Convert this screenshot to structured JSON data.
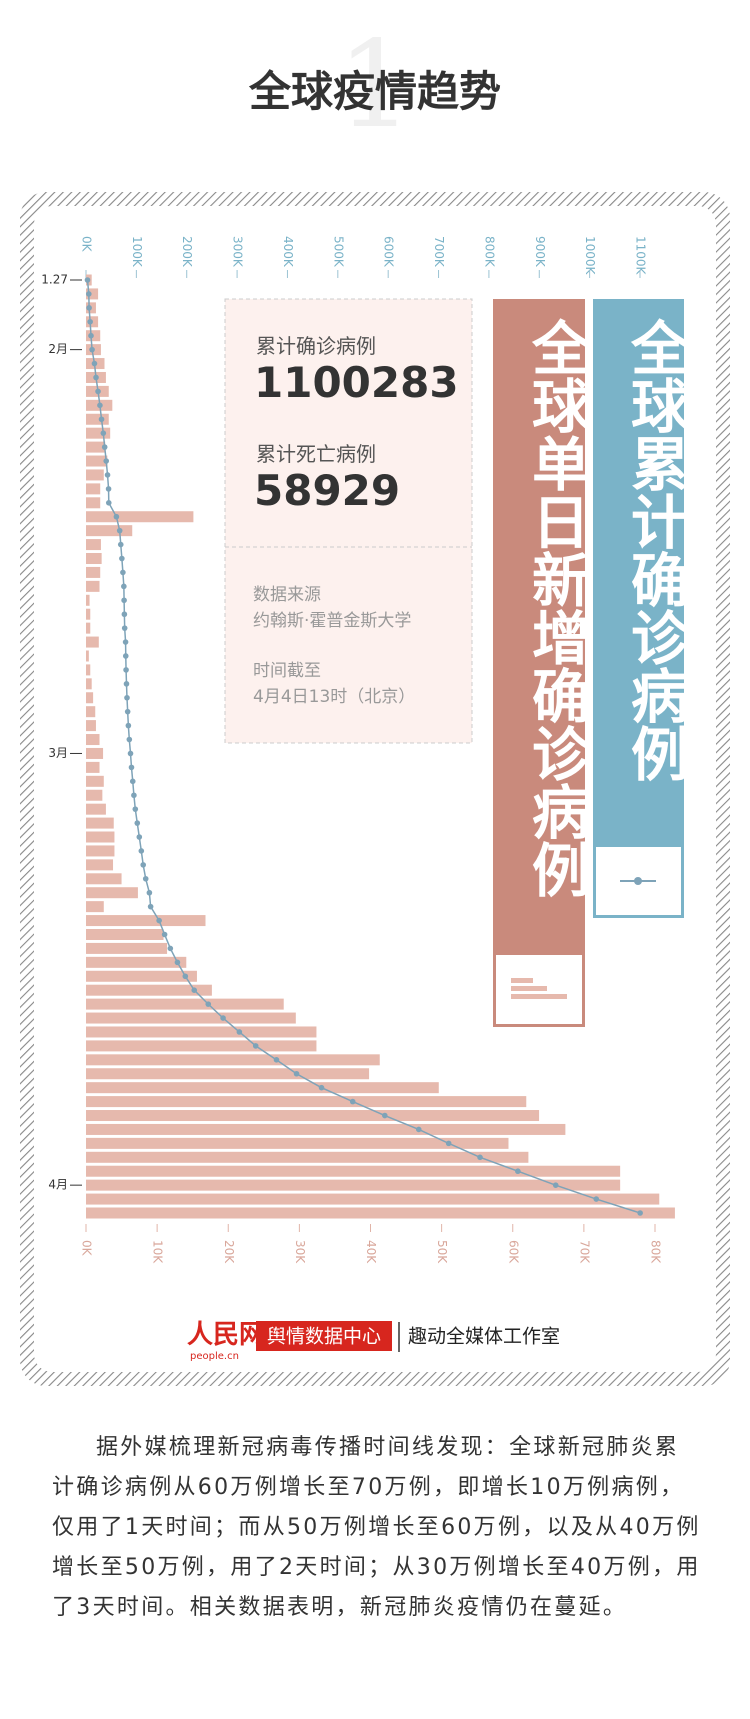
{
  "header": {
    "section_number": "1",
    "title": "全球疫情趋势"
  },
  "chart_data": {
    "type": "bar",
    "categories": [
      "1.27",
      null,
      null,
      null,
      null,
      "2月",
      null,
      null,
      null,
      null,
      null,
      null,
      null,
      null,
      null,
      null,
      null,
      null,
      null,
      null,
      null,
      null,
      null,
      null,
      null,
      null,
      null,
      null,
      null,
      null,
      null,
      null,
      null,
      null,
      "3月",
      null,
      null,
      null,
      null,
      null,
      null,
      null,
      null,
      null,
      null,
      null,
      null,
      null,
      null,
      null,
      null,
      null,
      null,
      null,
      null,
      null,
      null,
      null,
      null,
      null,
      null,
      null,
      null,
      null,
      null,
      "4月",
      null,
      null
    ],
    "series": [
      {
        "name": "全球单日新增确诊病例",
        "color": "#e6b9ad",
        "axis": "x",
        "values": [
          800,
          1700,
          1400,
          1700,
          2000,
          2100,
          2600,
          2800,
          3200,
          3700,
          3200,
          3400,
          2700,
          3000,
          2500,
          2000,
          2000,
          15100,
          6500,
          2100,
          2200,
          2000,
          1900,
          500,
          600,
          600,
          1800,
          400,
          600,
          800,
          1000,
          1300,
          1400,
          1900,
          2400,
          1900,
          2500,
          2300,
          2800,
          3900,
          4000,
          4000,
          3800,
          5000,
          7300,
          2500,
          16800,
          10900,
          11400,
          14100,
          15600,
          17700,
          27800,
          29500,
          32400,
          32400,
          41300,
          39800,
          49600,
          61900,
          63700,
          67400,
          59400,
          62200,
          75100,
          75100,
          80600,
          82800
        ]
      },
      {
        "name": "全球累计确诊病例",
        "color": "#7ea3b8",
        "axis": "x2",
        "values": [
          2927,
          5578,
          6166,
          8234,
          9927,
          12038,
          16787,
          19881,
          23892,
          27635,
          30817,
          34391,
          37120,
          40150,
          42762,
          44802,
          45221,
          60368,
          66885,
          69030,
          71224,
          73258,
          75136,
          75639,
          76197,
          76819,
          78572,
          78958,
          79561,
          80406,
          81388,
          82746,
          84112,
          86011,
          88369,
          90306,
          92840,
          95120,
          97886,
          101800,
          105836,
          109835,
          113582,
          118582,
          125865,
          128343,
          145193,
          156097,
          167449,
          181546,
          197168,
          214915,
          242713,
          272167,
          304528,
          336953,
          378235,
          418045,
          467653,
          529591,
          593291,
          660706,
          720117,
          782365,
          857487,
          932605,
          1013157,
          1100283
        ]
      }
    ],
    "xlim": [
      0,
      80000
    ],
    "xticks": [
      {
        "value": 0,
        "label": "0K"
      },
      {
        "value": 10000,
        "label": "10K"
      },
      {
        "value": 20000,
        "label": "20K"
      },
      {
        "value": 30000,
        "label": "30K"
      },
      {
        "value": 40000,
        "label": "40K"
      },
      {
        "value": 50000,
        "label": "50K"
      },
      {
        "value": 60000,
        "label": "60K"
      },
      {
        "value": 70000,
        "label": "70K"
      },
      {
        "value": 80000,
        "label": "80K"
      }
    ],
    "x2lim": [
      0,
      1100000
    ],
    "x2ticks": [
      {
        "value": 0,
        "label": "0K"
      },
      {
        "value": 100000,
        "label": "100K"
      },
      {
        "value": 200000,
        "label": "200K"
      },
      {
        "value": 300000,
        "label": "300K"
      },
      {
        "value": 400000,
        "label": "400K"
      },
      {
        "value": 500000,
        "label": "500K"
      },
      {
        "value": 600000,
        "label": "600K"
      },
      {
        "value": 700000,
        "label": "700K"
      },
      {
        "value": 800000,
        "label": "800K"
      },
      {
        "value": 900000,
        "label": "900K"
      },
      {
        "value": 1000000,
        "label": "1000K"
      },
      {
        "value": 1100000,
        "label": "1100K"
      }
    ],
    "grid": false
  },
  "info": {
    "confirmed_label": "累计确诊病例",
    "confirmed": 1100283,
    "deaths_label": "累计死亡病例",
    "deaths": 58929,
    "source_label": "数据来源",
    "source": "约翰斯·霍普金斯大学",
    "time_label": "时间截至",
    "time": "4月4日13时（北京）"
  },
  "footer": {
    "logo": "人民网",
    "logo_url": "people.cn",
    "center": "舆情数据中心",
    "studio": "趣动全媒体工作室"
  },
  "paragraph": "据外媒梳理新冠病毒传播时间线发现：全球新冠肺炎累计确诊病例从60万例增长至70万例，即增长10万例病例，仅用了1天时间；而从50万例增长至60万例，以及从40万例增长至50万例，用了2天时间；从30万例增长至40万例，用了3天时间。相关数据表明，新冠肺炎疫情仍在蔓延。"
}
